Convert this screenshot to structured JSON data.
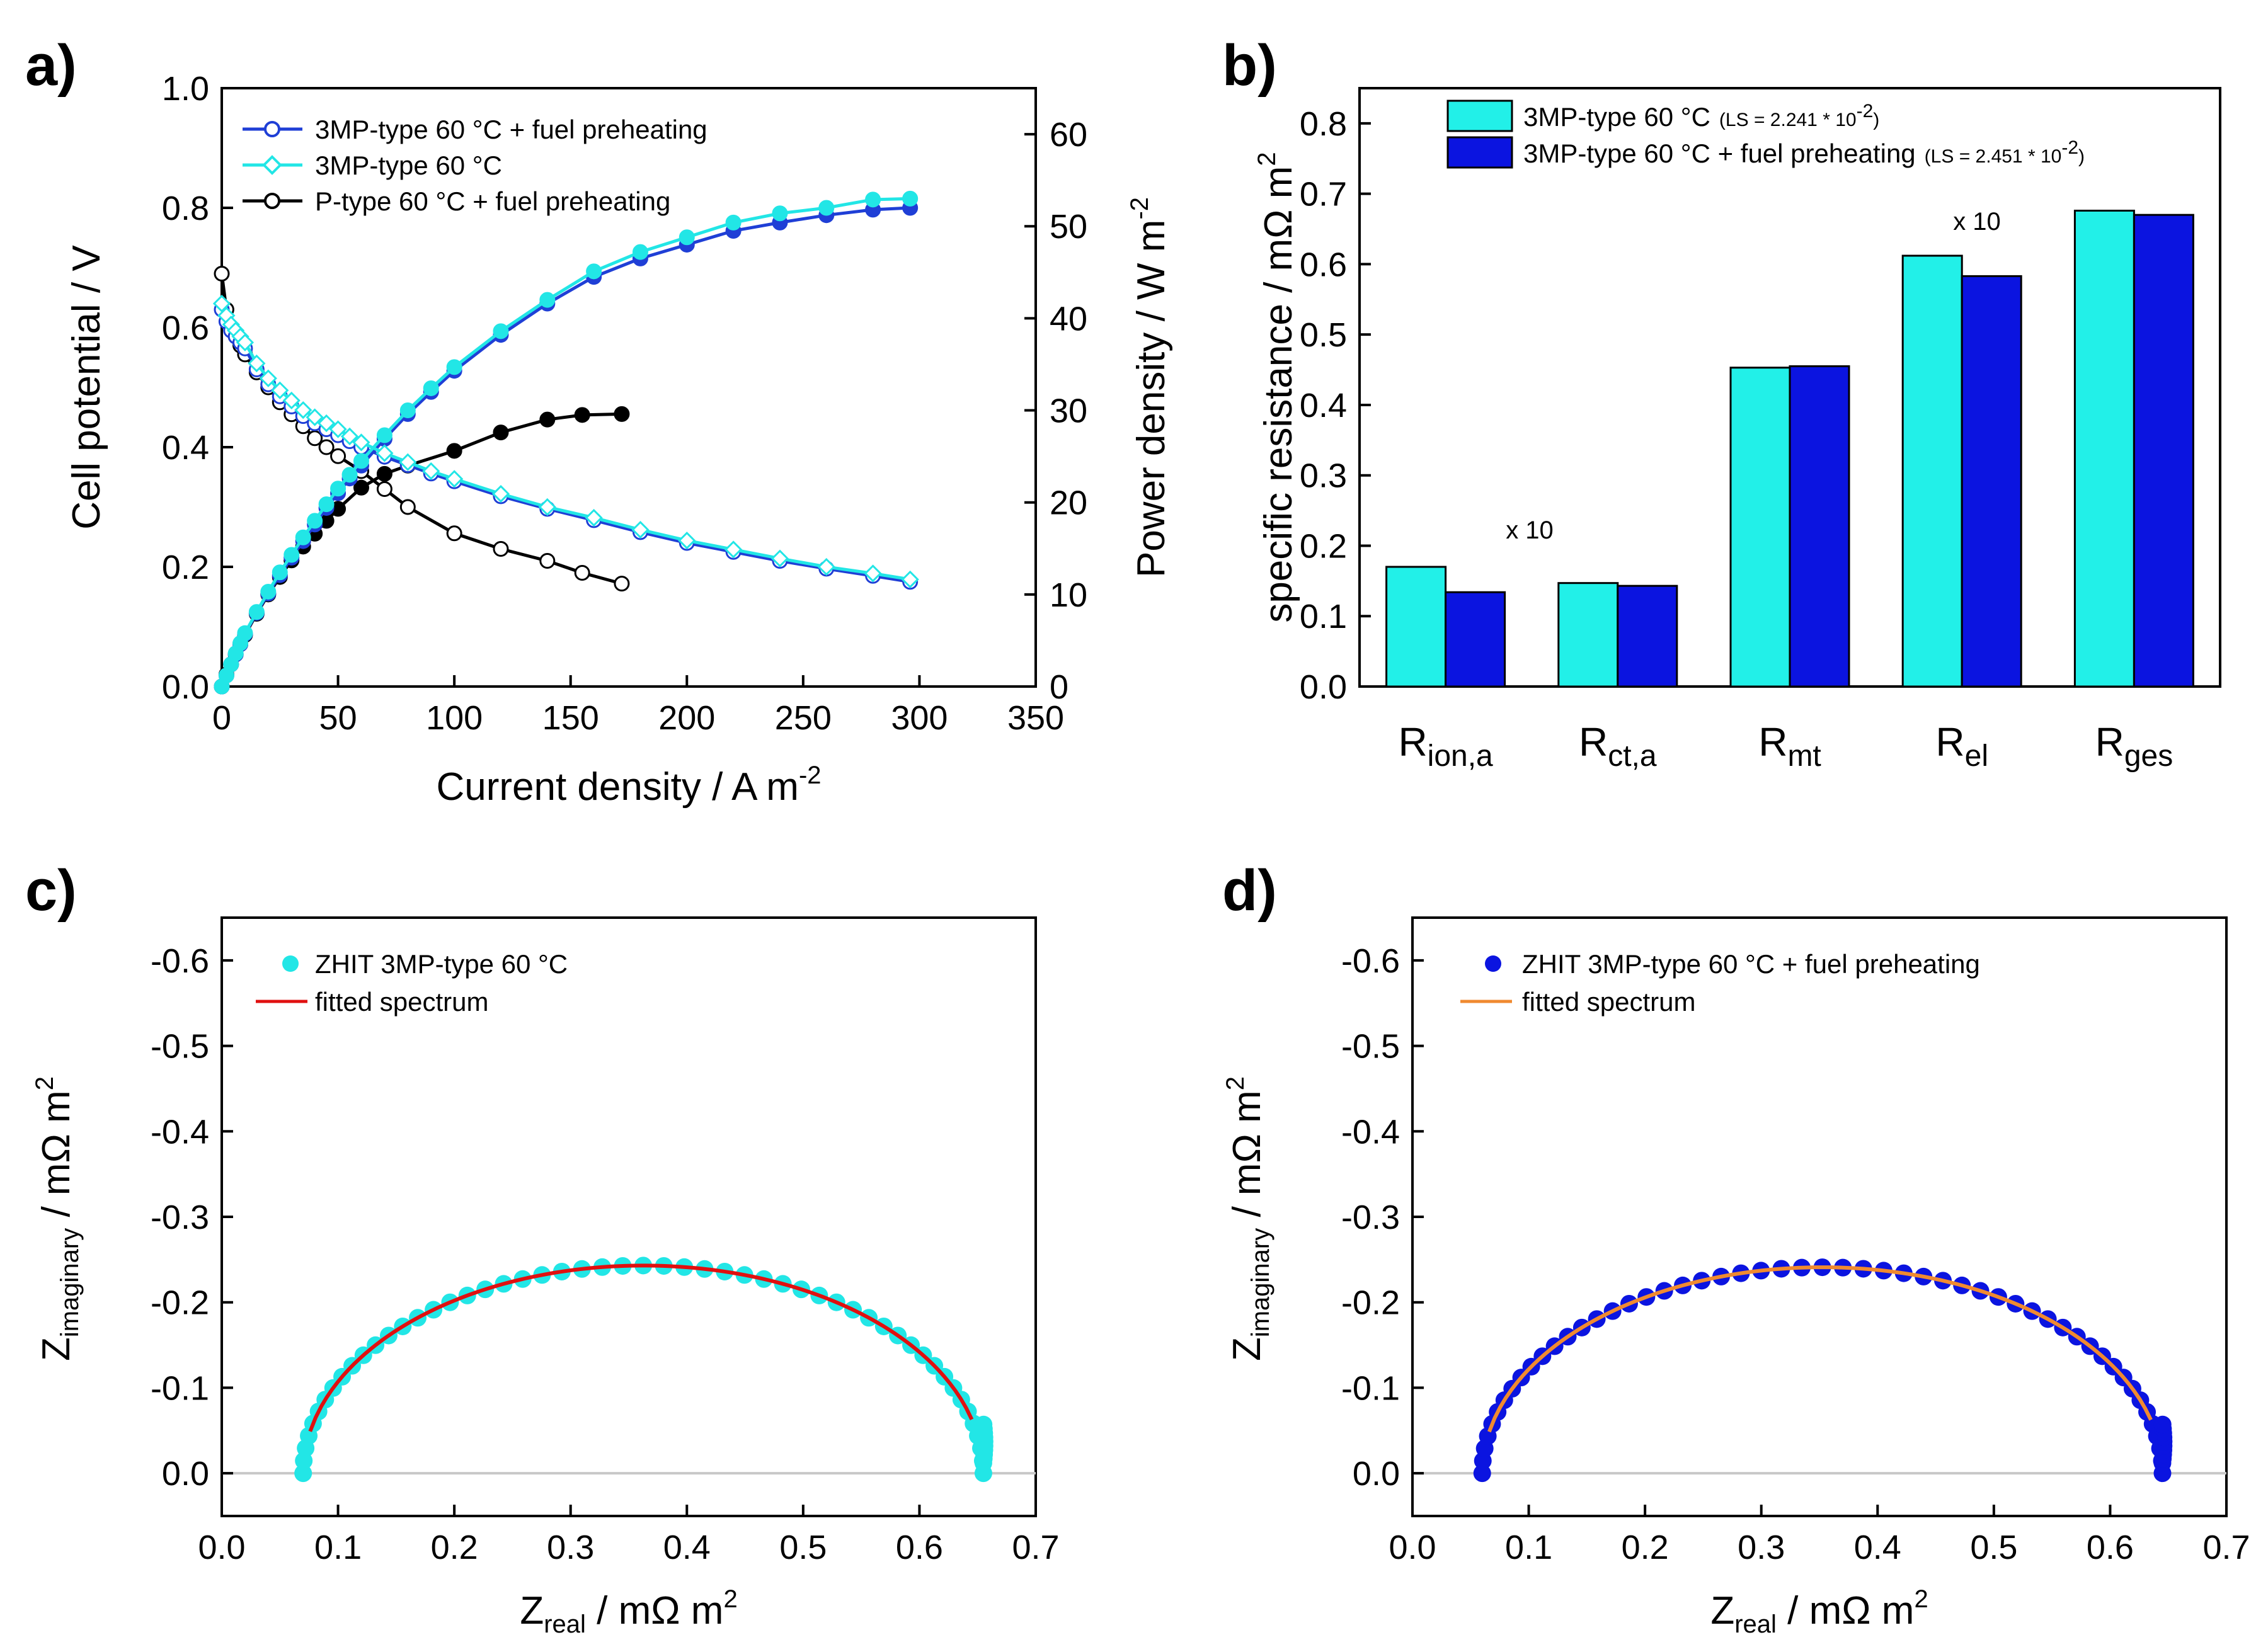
{
  "chart_data": [
    {
      "panel": "a)",
      "type": "line",
      "xlabel": "Current density / A m",
      "xlabel_sup": "-2",
      "ylabel": "Cell potential / V",
      "y2label": "Power density / W m",
      "y2label_sup": "-2",
      "xlim": [
        0,
        350
      ],
      "ylim": [
        0,
        1.0
      ],
      "y2lim": [
        0,
        65
      ],
      "xticks": [
        "0",
        "50",
        "100",
        "150",
        "200",
        "250",
        "300",
        "350"
      ],
      "yticks": [
        "0.0",
        "0.2",
        "0.4",
        "0.6",
        "0.8",
        "1.0"
      ],
      "y2ticks": [
        "0",
        "10",
        "20",
        "30",
        "40",
        "50",
        "60"
      ],
      "legend": [
        "3MP-type 60 °C + fuel preheating",
        "3MP-type 60 °C",
        "P-type 60 °C + fuel preheating"
      ],
      "series": [
        {
          "name": "3MP-type 60 °C + fuel preheating",
          "kind": "potential",
          "color": "#1f3fd6",
          "x": [
            0,
            2,
            4,
            6,
            8,
            10,
            15,
            20,
            25,
            30,
            35,
            40,
            45,
            50,
            55,
            60,
            70,
            80,
            90,
            100,
            120,
            140,
            160,
            180,
            200,
            220,
            240,
            260,
            280,
            296
          ],
          "y": [
            0.63,
            0.61,
            0.595,
            0.585,
            0.575,
            0.565,
            0.53,
            0.505,
            0.485,
            0.468,
            0.452,
            0.44,
            0.43,
            0.42,
            0.41,
            0.4,
            0.384,
            0.37,
            0.356,
            0.343,
            0.318,
            0.297,
            0.278,
            0.258,
            0.24,
            0.225,
            0.21,
            0.197,
            0.185,
            0.175
          ]
        },
        {
          "name": "3MP-type 60 °C",
          "kind": "potential",
          "color": "#22e6e6",
          "x": [
            0,
            2,
            4,
            6,
            8,
            10,
            15,
            20,
            25,
            30,
            35,
            40,
            45,
            50,
            55,
            60,
            70,
            80,
            90,
            100,
            120,
            140,
            160,
            180,
            200,
            220,
            240,
            260,
            280,
            296
          ],
          "y": [
            0.64,
            0.62,
            0.605,
            0.595,
            0.585,
            0.575,
            0.54,
            0.515,
            0.495,
            0.478,
            0.462,
            0.45,
            0.44,
            0.43,
            0.418,
            0.408,
            0.39,
            0.375,
            0.36,
            0.347,
            0.322,
            0.3,
            0.282,
            0.262,
            0.244,
            0.229,
            0.214,
            0.2,
            0.189,
            0.179
          ]
        },
        {
          "name": "P-type 60 °C + fuel preheating",
          "kind": "potential",
          "color": "#000000",
          "x": [
            0,
            2,
            4,
            6,
            8,
            10,
            15,
            20,
            25,
            30,
            35,
            40,
            45,
            50,
            60,
            70,
            80,
            100,
            120,
            140,
            155,
            172
          ],
          "y": [
            0.69,
            0.63,
            0.6,
            0.585,
            0.57,
            0.555,
            0.525,
            0.5,
            0.475,
            0.455,
            0.435,
            0.415,
            0.4,
            0.385,
            0.36,
            0.33,
            0.3,
            0.256,
            0.23,
            0.21,
            0.19,
            0.172
          ]
        },
        {
          "name": "3MP-type 60 °C + fuel preheating",
          "kind": "power",
          "color": "#1f3fd6",
          "x": [
            0,
            2,
            4,
            6,
            8,
            10,
            15,
            20,
            25,
            30,
            35,
            40,
            45,
            50,
            55,
            60,
            70,
            80,
            90,
            100,
            120,
            140,
            160,
            180,
            200,
            220,
            240,
            260,
            280,
            296
          ],
          "y": [
            0,
            1.2,
            2.4,
            3.5,
            4.6,
            5.7,
            8.0,
            10.1,
            12.1,
            14.0,
            15.8,
            17.6,
            19.4,
            21.0,
            22.6,
            24.0,
            26.9,
            29.6,
            32.0,
            34.3,
            38.2,
            41.6,
            44.5,
            46.5,
            48.0,
            49.5,
            50.4,
            51.2,
            51.8,
            52.0
          ]
        },
        {
          "name": "3MP-type 60 °C",
          "kind": "power",
          "color": "#22e6e6",
          "x": [
            0,
            2,
            4,
            6,
            8,
            10,
            15,
            20,
            25,
            30,
            35,
            40,
            45,
            50,
            55,
            60,
            70,
            80,
            90,
            100,
            120,
            140,
            160,
            180,
            200,
            220,
            240,
            260,
            280,
            296
          ],
          "y": [
            0,
            1.2,
            2.4,
            3.6,
            4.7,
            5.8,
            8.1,
            10.3,
            12.4,
            14.3,
            16.2,
            18.0,
            19.8,
            21.5,
            23.0,
            24.5,
            27.3,
            30.0,
            32.4,
            34.7,
            38.6,
            42.0,
            45.1,
            47.2,
            48.8,
            50.4,
            51.4,
            52.0,
            52.9,
            53.0
          ]
        },
        {
          "name": "P-type 60 °C + fuel preheating",
          "kind": "power",
          "color": "#000000",
          "x": [
            0,
            2,
            4,
            6,
            8,
            10,
            15,
            20,
            25,
            30,
            35,
            40,
            45,
            50,
            60,
            70,
            80,
            100,
            120,
            140,
            155,
            172
          ],
          "y": [
            0,
            1.3,
            2.4,
            3.5,
            4.6,
            5.6,
            7.9,
            10.0,
            11.9,
            13.7,
            15.2,
            16.6,
            18.0,
            19.3,
            21.6,
            23.1,
            24.0,
            25.6,
            27.6,
            29.0,
            29.5,
            29.6
          ]
        }
      ]
    },
    {
      "panel": "b)",
      "type": "bar",
      "ylabel": "specific resistance / mΩ m",
      "ylabel_sup": "2",
      "ylim": [
        0,
        0.85
      ],
      "yticks": [
        "0.0",
        "0.1",
        "0.2",
        "0.3",
        "0.4",
        "0.5",
        "0.6",
        "0.7",
        "0.8"
      ],
      "categories": [
        {
          "main": "R",
          "sub": "ion,a"
        },
        {
          "main": "R",
          "sub": "ct,a"
        },
        {
          "main": "R",
          "sub": "mt"
        },
        {
          "main": "R",
          "sub": "el"
        },
        {
          "main": "R",
          "sub": "ges"
        }
      ],
      "annotations": [
        "x 10",
        "x 10"
      ],
      "legend": [
        {
          "label": "3MP-type 60 °C",
          "ls_pre": "(LS = 2.241 * 10",
          "ls_sup": "-2",
          "ls_post": ")"
        },
        {
          "label": "3MP-type 60 °C + fuel preheating",
          "ls_pre": "(LS = 2.451 * 10",
          "ls_sup": "-2",
          "ls_post": ")"
        }
      ],
      "series": [
        {
          "name": "3MP-type 60 °C",
          "color": "#22f0e8",
          "values": [
            0.17,
            0.147,
            0.453,
            0.612,
            0.676
          ]
        },
        {
          "name": "3MP-type 60 °C + fuel preheating",
          "color": "#0b14e0",
          "values": [
            0.134,
            0.143,
            0.455,
            0.583,
            0.67
          ]
        }
      ]
    },
    {
      "panel": "c)",
      "type": "scatter",
      "xlabel_main": "Z",
      "xlabel_sub": "real",
      "xlabel_rest": " / mΩ m",
      "xlabel_sup": "2",
      "ylabel_main": "Z",
      "ylabel_sub": "imaginary",
      "ylabel_rest": " / mΩ m",
      "ylabel_sup": "2",
      "xlim": [
        0.0,
        0.7
      ],
      "ylim": [
        0.05,
        -0.65
      ],
      "xticks": [
        "0.0",
        "0.1",
        "0.2",
        "0.3",
        "0.4",
        "0.5",
        "0.6",
        "0.7"
      ],
      "yticks": [
        "0.0",
        "-0.1",
        "-0.2",
        "-0.3",
        "-0.4",
        "-0.5",
        "-0.6"
      ],
      "legend": [
        "ZHIT 3MP-type 60 °C",
        "fitted spectrum"
      ],
      "marker_color": "#22e6e6",
      "fit_color": "#e01010",
      "center_x": 0.3625,
      "radius_x": 0.2925,
      "height": 0.243,
      "fit_end_x": 0.645
    },
    {
      "panel": "d)",
      "type": "scatter",
      "xlabel_main": "Z",
      "xlabel_sub": "real",
      "xlabel_rest": " / mΩ m",
      "xlabel_sup": "2",
      "ylabel_main": "Z",
      "ylabel_sub": "imaginary",
      "ylabel_rest": " / mΩ m",
      "ylabel_sup": "2",
      "xlim": [
        0.0,
        0.7
      ],
      "ylim": [
        0.05,
        -0.65
      ],
      "xticks": [
        "0.0",
        "0.1",
        "0.2",
        "0.3",
        "0.4",
        "0.5",
        "0.6",
        "0.7"
      ],
      "yticks": [
        "0.0",
        "-0.1",
        "-0.2",
        "-0.3",
        "-0.4",
        "-0.5",
        "-0.6"
      ],
      "legend": [
        "ZHIT 3MP-type 60 °C + fuel preheating",
        "fitted spectrum"
      ],
      "marker_color": "#0b14e0",
      "fit_color": "#f08a30",
      "center_x": 0.3525,
      "radius_x": 0.2925,
      "height": 0.241,
      "fit_end_x": 0.635
    }
  ]
}
